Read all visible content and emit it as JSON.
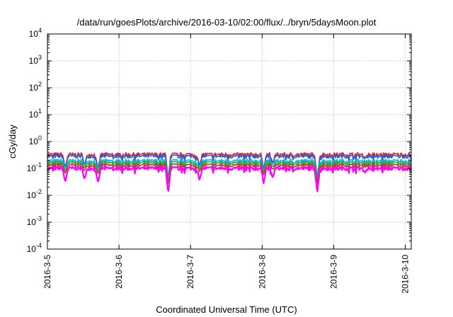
{
  "chart_data": {
    "type": "line",
    "title": "/data/run/goesPlots/archive/2016-03-10/02:00/flux/../bryn/5daysMoon.plot",
    "xlabel": "Coordinated Universal Time (UTC)",
    "ylabel": "cGy/day",
    "y_scale": "log",
    "ylim": [
      0.0001,
      10000
    ],
    "xlim": [
      "2016-03-05 00:00",
      "2016-03-10 02:00"
    ],
    "grid": true,
    "y_ticks": [
      {
        "base": "10",
        "exp": "4"
      },
      {
        "base": "10",
        "exp": "3"
      },
      {
        "base": "10",
        "exp": "2"
      },
      {
        "base": "10",
        "exp": "1"
      },
      {
        "base": "10",
        "exp": "0"
      },
      {
        "base": "10",
        "exp": "-1"
      },
      {
        "base": "10",
        "exp": "-2"
      },
      {
        "base": "10",
        "exp": "-3"
      },
      {
        "base": "10",
        "exp": "-4"
      }
    ],
    "x_ticks": [
      "2016-3-5",
      "2016-3-6",
      "2016-3-7",
      "2016-3-8",
      "2016-3-9",
      "2016-3-10"
    ],
    "series": [
      {
        "color": "#e8202a",
        "level": 0.33
      },
      {
        "color": "#2060e0",
        "level": 0.28
      },
      {
        "color": "#17b8cf",
        "level": 0.19
      },
      {
        "color": "#2aa84a",
        "level": 0.16
      },
      {
        "color": "#c0392b",
        "level": 0.13
      },
      {
        "color": "#ff00ff",
        "level": 0.1
      }
    ],
    "dips": [
      {
        "x": "2016-03-05 06:00",
        "min": 0.03
      },
      {
        "x": "2016-03-05 12:30",
        "min": 0.04
      },
      {
        "x": "2016-03-05 17:00",
        "min": 0.028
      },
      {
        "x": "2016-03-06 16:30",
        "min": 0.012
      },
      {
        "x": "2016-03-07 03:00",
        "min": 0.035
      },
      {
        "x": "2016-03-08 00:30",
        "min": 0.028
      },
      {
        "x": "2016-03-08 03:30",
        "min": 0.045
      },
      {
        "x": "2016-03-08 18:30",
        "min": 0.012
      },
      {
        "x": "2016-03-09 10:30",
        "min": 0.07
      }
    ]
  }
}
